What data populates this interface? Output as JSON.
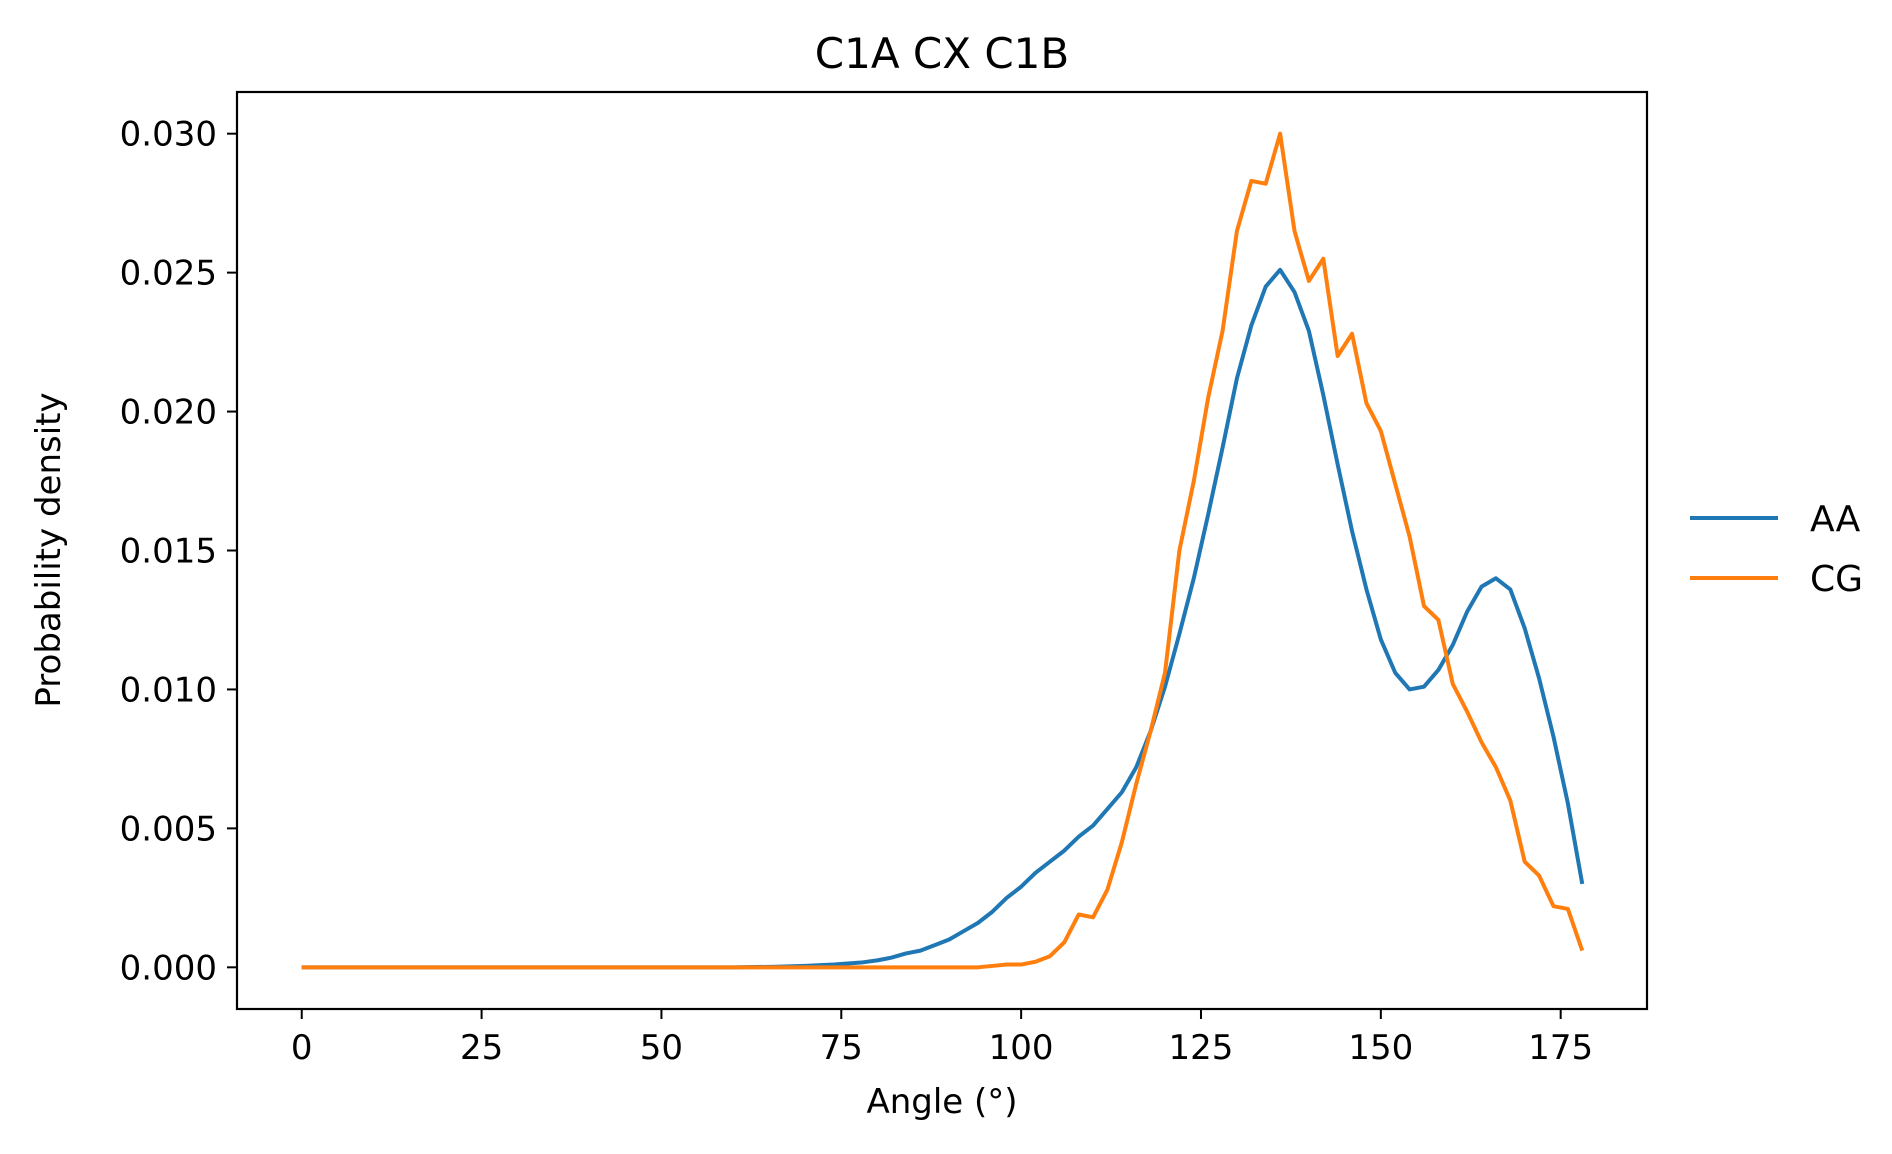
{
  "chart_data": {
    "type": "line",
    "title": "C1A CX C1B",
    "xlabel": "Angle (°)",
    "ylabel": "Probability density",
    "xlim": [
      -9,
      187
    ],
    "ylim": [
      -0.0015,
      0.0315
    ],
    "xticks": [
      0,
      25,
      50,
      75,
      100,
      125,
      150,
      175
    ],
    "xtick_labels": [
      "0",
      "25",
      "50",
      "75",
      "100",
      "125",
      "150",
      "175"
    ],
    "yticks": [
      0.0,
      0.005,
      0.01,
      0.015,
      0.02,
      0.025,
      0.03
    ],
    "ytick_labels": [
      "0.000",
      "0.005",
      "0.010",
      "0.015",
      "0.020",
      "0.025",
      "0.030"
    ],
    "grid": false,
    "legend_position": "outside-right",
    "series": [
      {
        "name": "AA",
        "color": "#1f77b4",
        "points": [
          [
            0,
            0.0
          ],
          [
            10,
            0.0
          ],
          [
            20,
            0.0
          ],
          [
            30,
            0.0
          ],
          [
            40,
            0.0
          ],
          [
            50,
            0.0
          ],
          [
            60,
            0.0
          ],
          [
            66,
            2e-05
          ],
          [
            70,
            5e-05
          ],
          [
            74,
            0.0001
          ],
          [
            78,
            0.00018
          ],
          [
            80,
            0.00025
          ],
          [
            82,
            0.00035
          ],
          [
            84,
            0.0005
          ],
          [
            86,
            0.0006
          ],
          [
            88,
            0.0008
          ],
          [
            90,
            0.001
          ],
          [
            92,
            0.0013
          ],
          [
            94,
            0.0016
          ],
          [
            96,
            0.002
          ],
          [
            98,
            0.0025
          ],
          [
            100,
            0.0029
          ],
          [
            102,
            0.0034
          ],
          [
            104,
            0.0038
          ],
          [
            106,
            0.0042
          ],
          [
            108,
            0.0047
          ],
          [
            110,
            0.0051
          ],
          [
            112,
            0.0057
          ],
          [
            114,
            0.0063
          ],
          [
            116,
            0.0072
          ],
          [
            118,
            0.0085
          ],
          [
            120,
            0.0101
          ],
          [
            122,
            0.012
          ],
          [
            124,
            0.014
          ],
          [
            126,
            0.0163
          ],
          [
            128,
            0.0187
          ],
          [
            130,
            0.0212
          ],
          [
            132,
            0.0231
          ],
          [
            134,
            0.0245
          ],
          [
            136,
            0.0251
          ],
          [
            138,
            0.0243
          ],
          [
            140,
            0.0229
          ],
          [
            142,
            0.0206
          ],
          [
            144,
            0.0181
          ],
          [
            146,
            0.0157
          ],
          [
            148,
            0.0136
          ],
          [
            150,
            0.0118
          ],
          [
            152,
            0.0106
          ],
          [
            154,
            0.01
          ],
          [
            156,
            0.0101
          ],
          [
            158,
            0.0107
          ],
          [
            160,
            0.0116
          ],
          [
            162,
            0.0128
          ],
          [
            164,
            0.0137
          ],
          [
            166,
            0.014
          ],
          [
            168,
            0.0136
          ],
          [
            170,
            0.0122
          ],
          [
            172,
            0.0104
          ],
          [
            174,
            0.0083
          ],
          [
            176,
            0.0059
          ],
          [
            178,
            0.003
          ]
        ]
      },
      {
        "name": "CG",
        "color": "#ff7f0e",
        "points": [
          [
            0,
            0.0
          ],
          [
            10,
            0.0
          ],
          [
            20,
            0.0
          ],
          [
            30,
            0.0
          ],
          [
            40,
            0.0
          ],
          [
            50,
            0.0
          ],
          [
            60,
            0.0
          ],
          [
            70,
            0.0
          ],
          [
            80,
            0.0
          ],
          [
            90,
            0.0
          ],
          [
            94,
            0.0
          ],
          [
            96,
            5e-05
          ],
          [
            98,
            0.0001
          ],
          [
            100,
            0.0001
          ],
          [
            102,
            0.0002
          ],
          [
            104,
            0.0004
          ],
          [
            106,
            0.0009
          ],
          [
            108,
            0.0019
          ],
          [
            110,
            0.0018
          ],
          [
            112,
            0.0028
          ],
          [
            114,
            0.0045
          ],
          [
            116,
            0.0066
          ],
          [
            118,
            0.0085
          ],
          [
            120,
            0.0106
          ],
          [
            122,
            0.015
          ],
          [
            124,
            0.0175
          ],
          [
            126,
            0.0205
          ],
          [
            128,
            0.0229
          ],
          [
            130,
            0.0265
          ],
          [
            132,
            0.0283
          ],
          [
            134,
            0.0282
          ],
          [
            136,
            0.03
          ],
          [
            138,
            0.0265
          ],
          [
            140,
            0.0247
          ],
          [
            142,
            0.0255
          ],
          [
            144,
            0.022
          ],
          [
            146,
            0.0228
          ],
          [
            148,
            0.0203
          ],
          [
            150,
            0.0193
          ],
          [
            152,
            0.0174
          ],
          [
            154,
            0.0155
          ],
          [
            156,
            0.013
          ],
          [
            158,
            0.0125
          ],
          [
            160,
            0.0102
          ],
          [
            162,
            0.0092
          ],
          [
            164,
            0.0081
          ],
          [
            166,
            0.0072
          ],
          [
            168,
            0.006
          ],
          [
            170,
            0.0038
          ],
          [
            172,
            0.0033
          ],
          [
            174,
            0.0022
          ],
          [
            176,
            0.0021
          ],
          [
            178,
            0.0006
          ]
        ]
      }
    ]
  }
}
